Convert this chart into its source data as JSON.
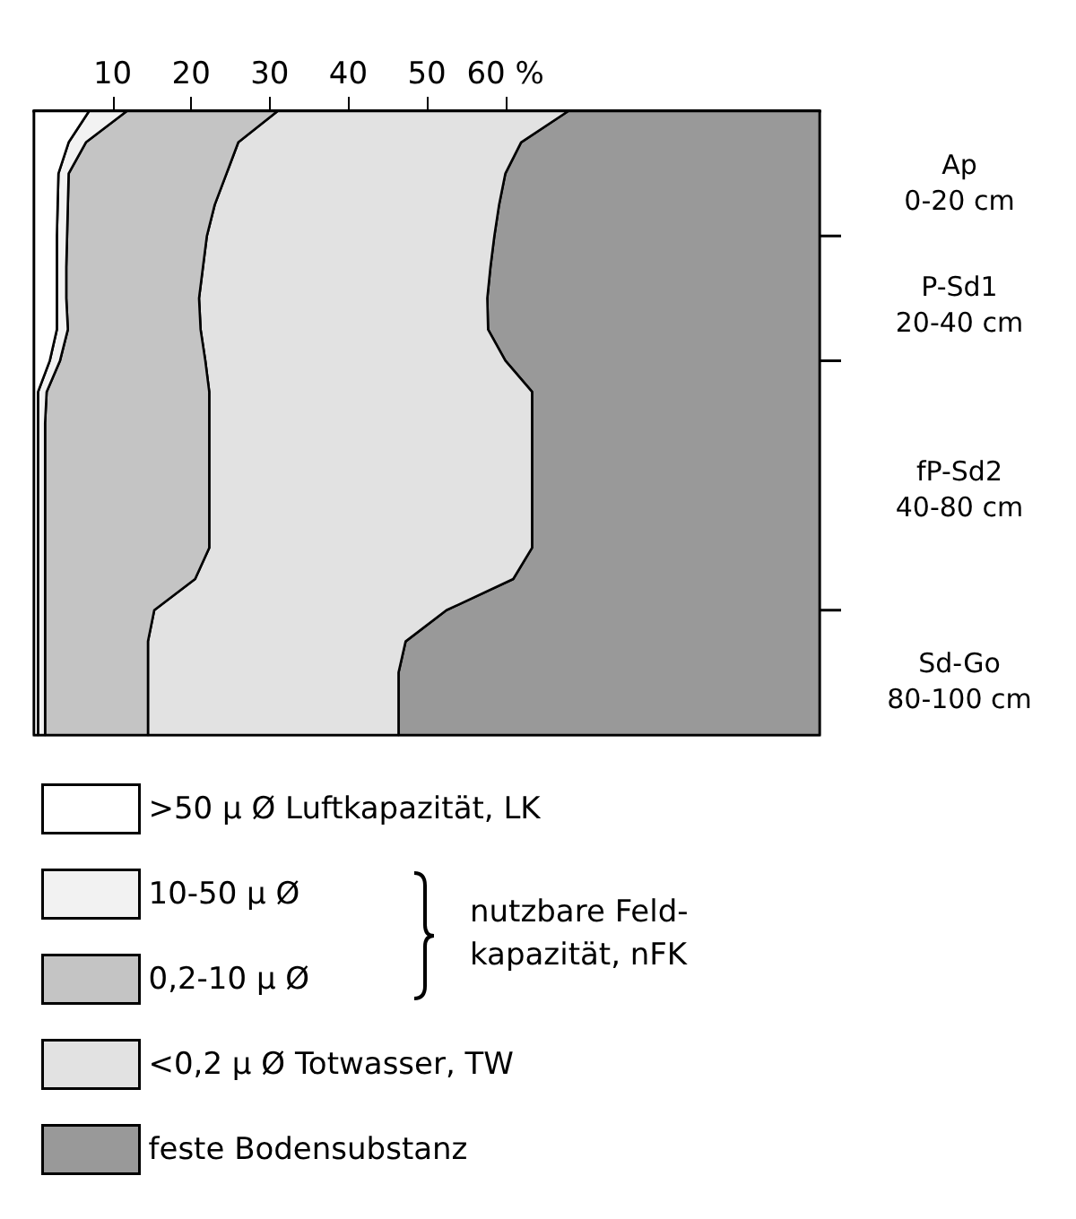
{
  "chart_data": {
    "type": "area",
    "stacked": true,
    "orientation": "horizontal",
    "categories": [
      null,
      null,
      null,
      null,
      null,
      null,
      null,
      null,
      null,
      null,
      null,
      null,
      null,
      null,
      null,
      null,
      null,
      null,
      null,
      null,
      null
    ],
    "series": [
      {
        "name": ">50 μ Ø Luftkapazität, LK",
        "color": "#ffffff",
        "values": [
          7,
          4.4,
          3.1,
          3.0,
          2.9,
          2.9,
          2.9,
          2.9,
          2.0,
          0.5,
          0.5,
          0.5,
          0.5,
          0.5,
          0.5,
          0.5,
          0.5,
          0.5,
          0.5,
          0.5,
          0.5
        ]
      },
      {
        "name": "10-50 μ Ø",
        "color": "#f2f2f2",
        "values": [
          4.8,
          2.2,
          1.3,
          1.3,
          1.3,
          1.2,
          1.2,
          1.4,
          1.3,
          1.1,
          0.9,
          0.9,
          0.9,
          0.9,
          0.9,
          0.9,
          0.9,
          0.9,
          0.9,
          0.9,
          0.9
        ]
      },
      {
        "name": "0,2-10 μ Ø",
        "color": "#c4c4c4",
        "values": [
          19.2,
          19.4,
          20.1,
          18.7,
          17.8,
          17.4,
          16.9,
          16.9,
          18.5,
          20.7,
          20.9,
          20.9,
          20.9,
          20.9,
          20.9,
          19.1,
          13.9,
          13.1,
          13.1,
          13.1,
          13.1
        ]
      },
      {
        "name": "<0,2 μ Ø Totwasser, TW",
        "color": "#e2e2e2",
        "values": [
          37,
          36,
          35.5,
          36.2,
          36.6,
          36.6,
          36.7,
          36.6,
          38.2,
          41.1,
          41.1,
          41.1,
          41.1,
          41.1,
          41.1,
          40.5,
          37.2,
          32.8,
          31.9,
          31.9,
          31.9
        ]
      },
      {
        "name": "feste Bodensubstanz",
        "color": "#999999",
        "values": [
          32,
          38,
          40,
          40.8,
          41.4,
          41.9,
          42.3,
          42.2,
          40,
          36.6,
          36.6,
          36.6,
          36.6,
          36.6,
          36.6,
          39,
          47.5,
          52.7,
          53.6,
          53.6,
          53.6
        ]
      }
    ],
    "xlim": [
      0,
      100
    ],
    "xticks": [
      10,
      20,
      30,
      40,
      50,
      {
        "value": 60,
        "label": "60 %"
      }
    ],
    "legend": "bottom",
    "annotations": [
      "Ap\n0-20 cm",
      "P-Sd1\n20-40 cm",
      "fP-Sd2\n40-80 cm",
      "Sd-Go\n80-100 cm",
      "nutzbare Feld-\nkapazität, nFK"
    ]
  }
}
